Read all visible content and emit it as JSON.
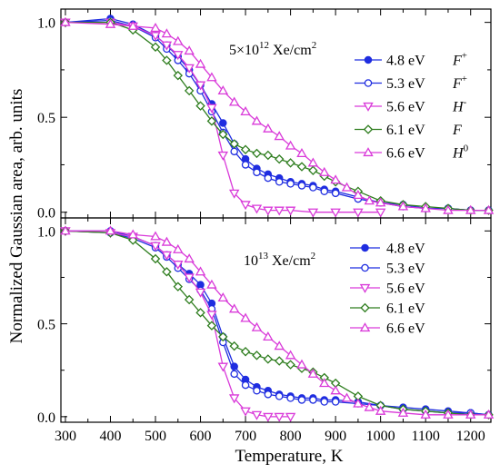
{
  "figure": {
    "ylabel": "Normalized Gaussian area, arb. units",
    "xlabel": "Temperature, K"
  },
  "chart_data": [
    {
      "type": "line",
      "panel": "top",
      "annotation": {
        "base": "5×10",
        "exp": "12",
        "unit": " Xe/cm",
        "unit_exp": "2"
      },
      "xlim": [
        290,
        1245
      ],
      "ylim": [
        -0.03,
        1.07
      ],
      "xticks": [
        300,
        400,
        500,
        600,
        700,
        800,
        900,
        1000,
        1100,
        1200
      ],
      "yticks": [
        0.0,
        0.5,
        1.0
      ],
      "ytick_labels": [
        "0.0",
        "0.5",
        "1.0"
      ],
      "legend_position": "right",
      "series": [
        {
          "label": "4.8 eV",
          "sym": "F",
          "sup": "+",
          "color": "#1f2de0",
          "marker": "circle",
          "filled": true,
          "x": [
            300,
            400,
            450,
            500,
            525,
            550,
            575,
            600,
            625,
            650,
            675,
            700,
            725,
            750,
            775,
            800,
            825,
            850,
            875,
            900,
            950,
            1000,
            1050,
            1100,
            1150,
            1200,
            1240
          ],
          "y": [
            1.0,
            1.02,
            0.99,
            0.93,
            0.88,
            0.82,
            0.75,
            0.67,
            0.57,
            0.47,
            0.36,
            0.28,
            0.23,
            0.2,
            0.18,
            0.16,
            0.15,
            0.14,
            0.12,
            0.11,
            0.08,
            0.05,
            0.04,
            0.02,
            0.02,
            0.01,
            0.01
          ]
        },
        {
          "label": "5.3 eV",
          "sym": "F",
          "sup": "+",
          "color": "#1f2de0",
          "marker": "circle",
          "filled": false,
          "x": [
            300,
            400,
            450,
            500,
            525,
            550,
            575,
            600,
            625,
            650,
            675,
            700,
            725,
            750,
            775,
            800,
            825,
            850,
            875,
            900,
            950,
            1000,
            1050,
            1100,
            1150,
            1200,
            1240
          ],
          "y": [
            1.0,
            1.01,
            0.98,
            0.92,
            0.86,
            0.8,
            0.73,
            0.64,
            0.53,
            0.42,
            0.32,
            0.25,
            0.21,
            0.18,
            0.16,
            0.15,
            0.14,
            0.13,
            0.11,
            0.1,
            0.07,
            0.05,
            0.03,
            0.02,
            0.02,
            0.01,
            0.01
          ]
        },
        {
          "label": "5.6 eV",
          "sym": "H",
          "sup": "-",
          "color": "#d93ad9",
          "marker": "tri-down",
          "filled": false,
          "x": [
            300,
            400,
            450,
            500,
            525,
            550,
            575,
            600,
            625,
            650,
            675,
            700,
            725,
            750,
            775,
            800,
            850,
            900,
            950,
            1000
          ],
          "y": [
            1.0,
            1.0,
            0.98,
            0.93,
            0.88,
            0.83,
            0.76,
            0.67,
            0.55,
            0.3,
            0.1,
            0.04,
            0.02,
            0.01,
            0.01,
            0.01,
            0.0,
            0.0,
            0.0,
            0.0
          ]
        },
        {
          "label": "6.1 eV",
          "sym": "F",
          "sup": "",
          "color": "#2e7d1e",
          "marker": "diamond",
          "filled": false,
          "x": [
            300,
            400,
            450,
            500,
            525,
            550,
            575,
            600,
            625,
            650,
            675,
            700,
            725,
            750,
            775,
            800,
            825,
            850,
            875,
            900,
            950,
            1000,
            1050,
            1100,
            1150,
            1200,
            1240
          ],
          "y": [
            1.0,
            1.0,
            0.96,
            0.87,
            0.8,
            0.72,
            0.64,
            0.56,
            0.48,
            0.41,
            0.36,
            0.33,
            0.31,
            0.3,
            0.28,
            0.26,
            0.24,
            0.22,
            0.19,
            0.16,
            0.11,
            0.06,
            0.04,
            0.03,
            0.02,
            0.01,
            0.01
          ]
        },
        {
          "label": "6.6 eV",
          "sym": "H",
          "sup": "0",
          "color": "#d93ad9",
          "marker": "tri-up",
          "filled": false,
          "x": [
            300,
            400,
            450,
            500,
            525,
            550,
            575,
            600,
            625,
            650,
            675,
            700,
            725,
            750,
            775,
            800,
            825,
            850,
            875,
            900,
            925,
            950,
            975,
            1000,
            1050,
            1100,
            1150,
            1200,
            1240
          ],
          "y": [
            1.0,
            0.99,
            0.98,
            0.97,
            0.94,
            0.9,
            0.85,
            0.78,
            0.71,
            0.64,
            0.58,
            0.53,
            0.48,
            0.44,
            0.4,
            0.35,
            0.31,
            0.26,
            0.21,
            0.17,
            0.13,
            0.09,
            0.06,
            0.05,
            0.03,
            0.02,
            0.01,
            0.01,
            0.01
          ]
        }
      ]
    },
    {
      "type": "line",
      "panel": "bottom",
      "annotation": {
        "base": "10",
        "exp": "13",
        "unit": " Xe/cm",
        "unit_exp": "2"
      },
      "xlim": [
        290,
        1245
      ],
      "ylim": [
        -0.03,
        1.07
      ],
      "xticks": [
        300,
        400,
        500,
        600,
        700,
        800,
        900,
        1000,
        1100,
        1200
      ],
      "xtick_labels": [
        "300",
        "400",
        "500",
        "600",
        "700",
        "800",
        "900",
        "1000",
        "1100",
        "1200"
      ],
      "yticks": [
        0.0,
        0.5,
        1.0
      ],
      "ytick_labels": [
        "0.0",
        "0.5",
        "1.0"
      ],
      "legend_position": "right",
      "series": [
        {
          "label": "4.8 eV",
          "color": "#1f2de0",
          "marker": "circle",
          "filled": true,
          "x": [
            300,
            400,
            450,
            500,
            525,
            550,
            575,
            600,
            625,
            650,
            675,
            700,
            725,
            750,
            775,
            800,
            825,
            850,
            875,
            900,
            950,
            1000,
            1050,
            1100,
            1150,
            1200,
            1240
          ],
          "y": [
            1.0,
            1.0,
            0.97,
            0.92,
            0.87,
            0.82,
            0.77,
            0.71,
            0.61,
            0.43,
            0.27,
            0.2,
            0.16,
            0.14,
            0.12,
            0.11,
            0.1,
            0.1,
            0.09,
            0.09,
            0.08,
            0.06,
            0.05,
            0.04,
            0.03,
            0.02,
            0.01
          ]
        },
        {
          "label": "5.3 eV",
          "color": "#1f2de0",
          "marker": "circle",
          "filled": false,
          "x": [
            300,
            400,
            450,
            500,
            525,
            550,
            575,
            600,
            625,
            650,
            675,
            700,
            725,
            750,
            775,
            800,
            825,
            850,
            875,
            900,
            950,
            1000,
            1050,
            1100,
            1150,
            1200,
            1240
          ],
          "y": [
            1.0,
            0.99,
            0.96,
            0.91,
            0.86,
            0.8,
            0.74,
            0.68,
            0.58,
            0.4,
            0.23,
            0.17,
            0.14,
            0.12,
            0.11,
            0.1,
            0.09,
            0.09,
            0.08,
            0.08,
            0.07,
            0.06,
            0.04,
            0.03,
            0.02,
            0.02,
            0.01
          ]
        },
        {
          "label": "5.6 eV",
          "color": "#d93ad9",
          "marker": "tri-down",
          "filled": false,
          "x": [
            300,
            400,
            450,
            500,
            525,
            550,
            575,
            600,
            625,
            650,
            675,
            700,
            725,
            750,
            775,
            800
          ],
          "y": [
            1.0,
            0.99,
            0.97,
            0.92,
            0.87,
            0.82,
            0.75,
            0.67,
            0.55,
            0.27,
            0.1,
            0.03,
            0.01,
            0.0,
            0.0,
            0.0
          ]
        },
        {
          "label": "6.1 eV",
          "color": "#2e7d1e",
          "marker": "diamond",
          "filled": false,
          "x": [
            300,
            400,
            450,
            500,
            525,
            550,
            575,
            600,
            625,
            650,
            675,
            700,
            725,
            750,
            775,
            800,
            825,
            850,
            875,
            900,
            950,
            1000,
            1050,
            1100,
            1150,
            1200,
            1240
          ],
          "y": [
            1.0,
            0.99,
            0.95,
            0.85,
            0.78,
            0.7,
            0.63,
            0.56,
            0.49,
            0.43,
            0.38,
            0.35,
            0.33,
            0.31,
            0.3,
            0.28,
            0.26,
            0.24,
            0.21,
            0.18,
            0.11,
            0.06,
            0.04,
            0.03,
            0.02,
            0.01,
            0.01
          ]
        },
        {
          "label": "6.6 eV",
          "color": "#d93ad9",
          "marker": "tri-up",
          "filled": false,
          "x": [
            300,
            400,
            450,
            500,
            525,
            550,
            575,
            600,
            625,
            650,
            675,
            700,
            725,
            750,
            775,
            800,
            825,
            850,
            875,
            900,
            925,
            950,
            975,
            1000,
            1050,
            1100,
            1150,
            1200,
            1240
          ],
          "y": [
            1.0,
            1.0,
            0.98,
            0.97,
            0.94,
            0.9,
            0.85,
            0.78,
            0.71,
            0.64,
            0.58,
            0.53,
            0.48,
            0.43,
            0.38,
            0.33,
            0.28,
            0.23,
            0.18,
            0.14,
            0.1,
            0.07,
            0.05,
            0.03,
            0.02,
            0.01,
            0.01,
            0.01,
            0.01
          ]
        }
      ]
    }
  ]
}
